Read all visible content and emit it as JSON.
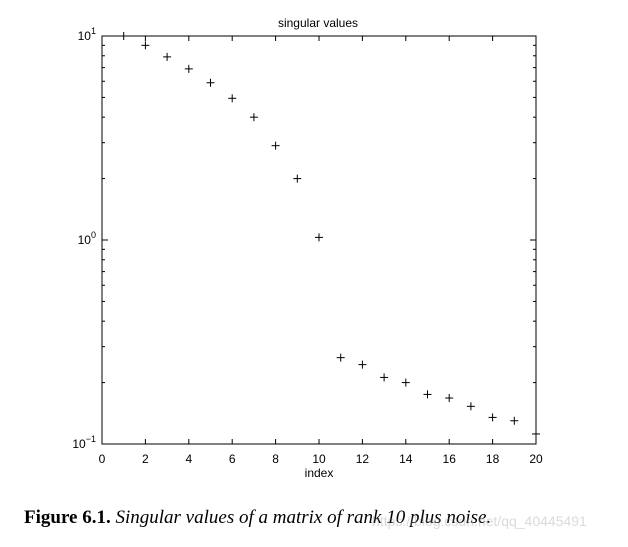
{
  "chart_data": {
    "type": "scatter",
    "title": "singular values",
    "xlabel": "index",
    "ylabel": "",
    "xlim": [
      0,
      20
    ],
    "ylim": [
      0.1,
      10
    ],
    "yscale": "log",
    "marker": "+",
    "grid": false,
    "x_ticks": [
      "0",
      "2",
      "4",
      "6",
      "8",
      "10",
      "12",
      "14",
      "16",
      "18",
      "20"
    ],
    "y_ticks": [
      {
        "value": 10,
        "base": "10",
        "exp": "1"
      },
      {
        "value": 1,
        "base": "10",
        "exp": "0"
      },
      {
        "value": 0.1,
        "base": "10",
        "exp": "−1"
      }
    ],
    "series": [
      {
        "x": [
          1,
          2,
          3,
          4,
          5,
          6,
          7,
          8,
          9,
          10,
          11,
          12,
          13,
          14,
          15,
          16,
          17,
          18,
          19,
          20
        ],
        "y": [
          10.0,
          9.0,
          7.9,
          6.9,
          5.9,
          4.95,
          4.0,
          2.9,
          2.0,
          1.03,
          0.265,
          0.245,
          0.212,
          0.2,
          0.175,
          0.168,
          0.153,
          0.135,
          0.13,
          0.112
        ]
      }
    ]
  },
  "caption": {
    "label": "Figure 6.1.",
    "text": "Singular values of a matrix of rank 10 plus noise."
  },
  "watermark": "https://blog.csdn.net/qq_40445491"
}
